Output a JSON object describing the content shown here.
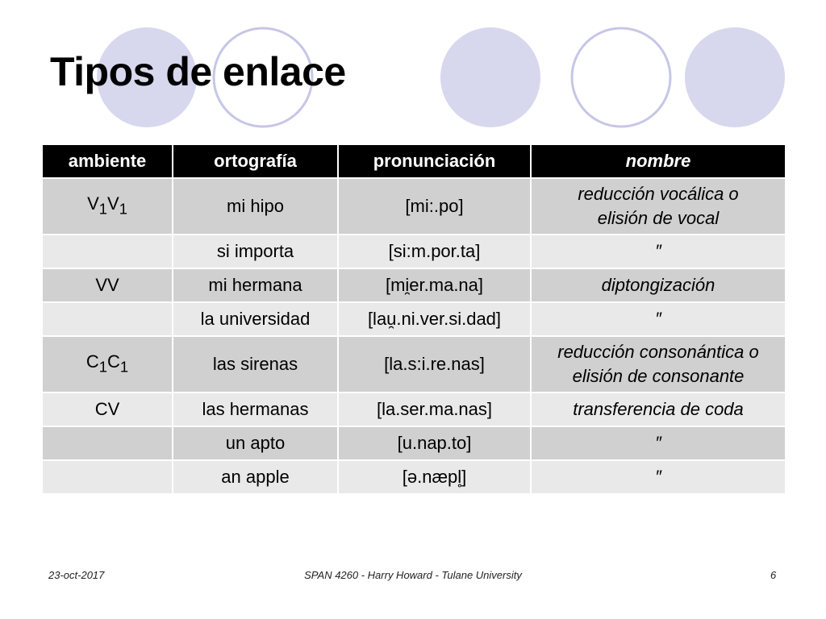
{
  "slide": {
    "title": "Tipos de enlace"
  },
  "table": {
    "headers": {
      "ambiente": "ambiente",
      "ortografia": "ortografía",
      "pronunciacion": "pronunciación",
      "nombre": "nombre"
    },
    "rows": [
      {
        "ambiente": "V",
        "ambiente_sub1": "1",
        "ambiente_mid": "V",
        "ambiente_sub2": "1",
        "ortografia": "mi hipo",
        "pronunciacion": "[mi:.po]",
        "nombre_line1": "reducción vocálica o",
        "nombre_line2": "elisión de vocal"
      },
      {
        "ambiente": "",
        "ortografia": "si importa",
        "pronunciacion": "[si:m.por.ta]",
        "nombre": "″"
      },
      {
        "ambiente": "VV",
        "ortografia": "mi hermana",
        "pronunciacion": "[mi̯er.ma.na]",
        "nombre": "diptongización"
      },
      {
        "ambiente": "",
        "ortografia": "la universidad",
        "pronunciacion": "[lau̯.ni.ver.si.dad]",
        "nombre": "″"
      },
      {
        "ambiente": "C",
        "ambiente_sub1": "1",
        "ambiente_mid": "C",
        "ambiente_sub2": "1",
        "ortografia": "las sirenas",
        "pronunciacion": "[la.s:i.re.nas]",
        "nombre_line1": "reducción consonántica o",
        "nombre_line2": "elisión de consonante"
      },
      {
        "ambiente": "CV",
        "ortografia": "las hermanas",
        "pronunciacion": "[la.ser.ma.nas]",
        "nombre": "transferencia de coda"
      },
      {
        "ambiente": "",
        "ortografia": "un apto",
        "pronunciacion": "[u.nap.to]",
        "nombre": "″"
      },
      {
        "ambiente": "",
        "ortografia": "an apple",
        "pronunciacion": "[ə.næpl̥]",
        "nombre": "″"
      }
    ]
  },
  "footer": {
    "date": "23-oct-2017",
    "center": "SPAN 4260 - Harry Howard - Tulane University",
    "page": "6"
  },
  "colors": {
    "circle_fill": "#d7d7ee",
    "circle_stroke": "#c6c6e6",
    "header_bg": "#000000",
    "row_dark": "#d0d0d0",
    "row_light": "#e9e9e9"
  }
}
